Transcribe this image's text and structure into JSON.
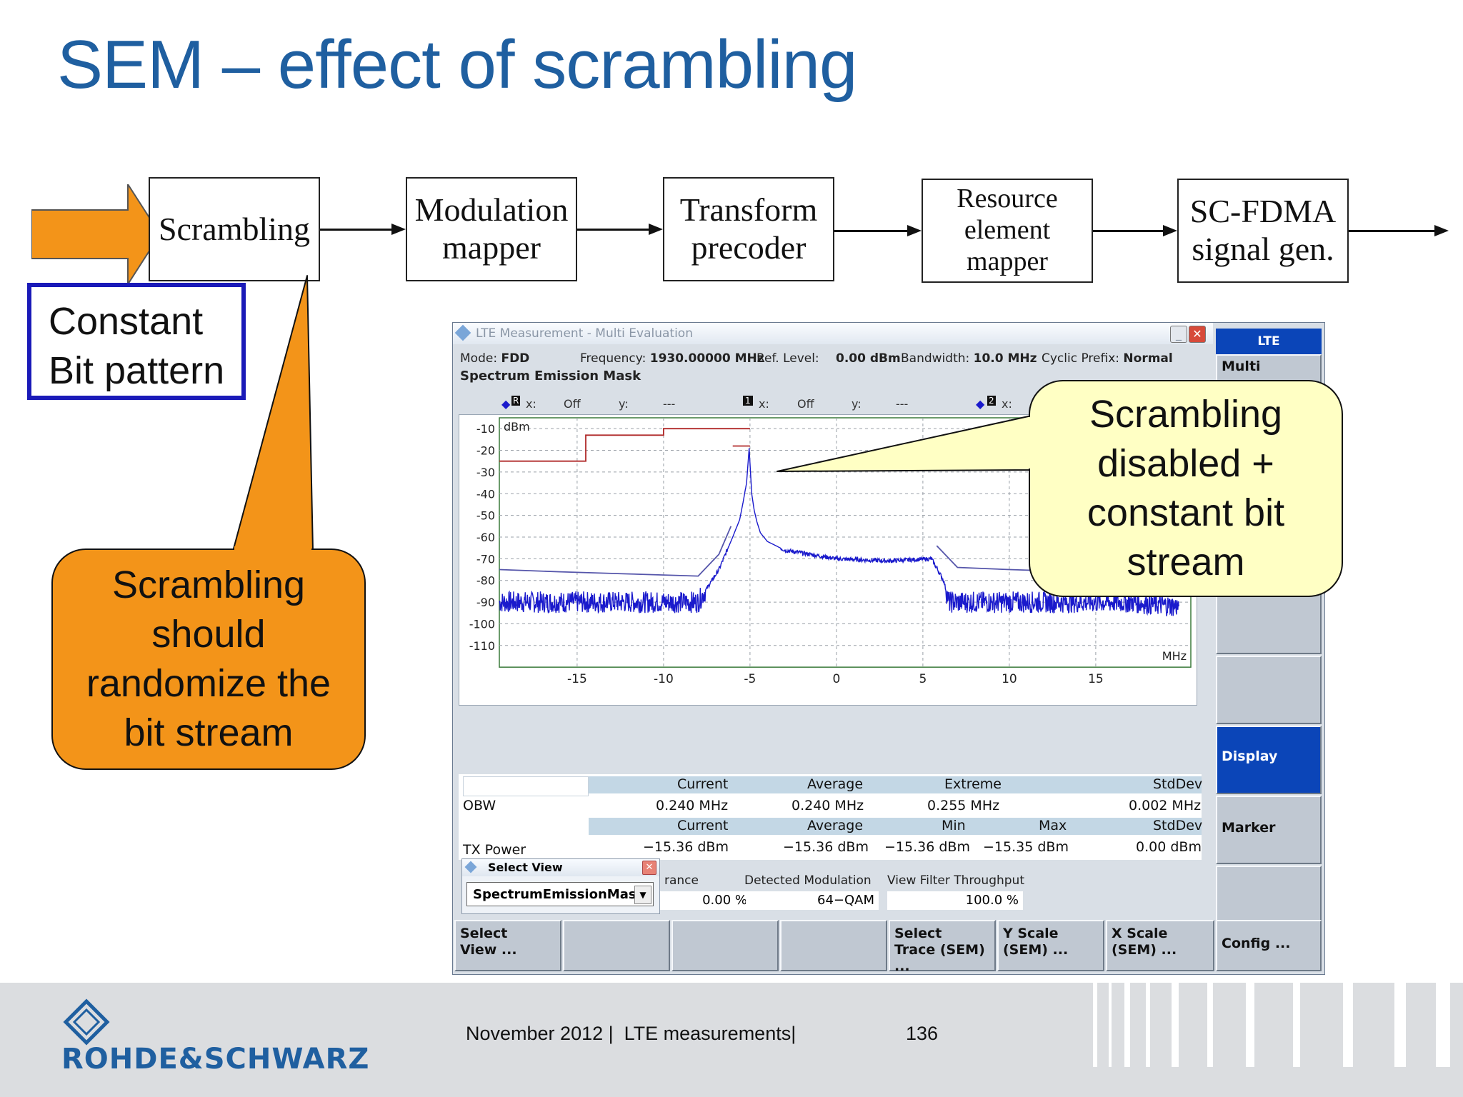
{
  "title": "SEM – effect of scrambling",
  "chain": {
    "blocks": [
      {
        "id": "scrambling",
        "lines": [
          "Scrambling"
        ]
      },
      {
        "id": "modulation-mapper",
        "lines": [
          "Modulation",
          "mapper"
        ]
      },
      {
        "id": "transform-precoder",
        "lines": [
          "Transform",
          "precoder"
        ]
      },
      {
        "id": "resource-element-mapper",
        "lines": [
          "Resource",
          "element mapper"
        ]
      },
      {
        "id": "sc-fdma",
        "lines": [
          "SC-FDMA",
          "signal gen."
        ]
      }
    ]
  },
  "constant_box": {
    "lines": [
      "Constant",
      "Bit pattern"
    ]
  },
  "callout_orange": {
    "lines": [
      "Scrambling",
      "should",
      "randomize the",
      "bit stream"
    ]
  },
  "callout_yellow": {
    "lines": [
      "Scrambling",
      "disabled +",
      "constant bit",
      "stream"
    ]
  },
  "instrument": {
    "window_title": "LTE Measurement - Multi Evaluation",
    "info": {
      "mode_label": "Mode:",
      "mode": "FDD",
      "freq_label": "Frequency:",
      "freq": "1930.00000 MHz",
      "ref_label": "Ref. Level:",
      "ref": "0.00 dBm",
      "bw_label": "Bandwidth:",
      "bw": "10.0 MHz",
      "cp_label": "Cyclic Prefix:",
      "cp": "Normal"
    },
    "view_name": "Spectrum Emission Mask",
    "markers": {
      "r_x": "x:",
      "r_xv": "Off",
      "r_y": "y:",
      "r_yv": "---",
      "m1_x": "x:",
      "m1_xv": "Off",
      "m1_y": "y:",
      "m1_yv": "---",
      "m2_x": "x:"
    },
    "unit_y": "dBm",
    "unit_x": "MHz",
    "results": {
      "obw": {
        "label": "OBW",
        "headers": [
          "Current",
          "Average",
          "Extreme",
          "StdDev"
        ],
        "values": [
          "0.240 MHz",
          "0.240 MHz",
          "0.255 MHz",
          "0.002 MHz"
        ]
      },
      "tx": {
        "label": "TX Power",
        "headers": [
          "Current",
          "Average",
          "Min",
          "Max",
          "StdDev"
        ],
        "values": [
          "−15.36 dBm",
          "−15.36 dBm",
          "−15.36 dBm",
          "−15.35 dBm",
          "0.00 dBm"
        ]
      },
      "row3": {
        "h1": "rance",
        "h2": "Detected Modulation",
        "h3": "View Filter Throughput",
        "v1": "0.00",
        "u1": "%",
        "v2": "64−QAM",
        "v3": "100.0",
        "u3": "%"
      }
    },
    "popup": {
      "title": "Select View",
      "value": "SpectrumEmissionMask"
    },
    "side_buttons": {
      "lte": "LTE",
      "multi": "Multi",
      "display": "Display",
      "marker": "Marker",
      "config": "Config ..."
    },
    "bottom_buttons": [
      {
        "l1": "Select",
        "l2": "View ..."
      },
      {
        "l1": "",
        "l2": ""
      },
      {
        "l1": "",
        "l2": ""
      },
      {
        "l1": "",
        "l2": ""
      },
      {
        "l1": "Select",
        "l2": "Trace (SEM) ..."
      },
      {
        "l1": "Y Scale",
        "l2": "(SEM) ..."
      },
      {
        "l1": "X Scale",
        "l2": "(SEM) ..."
      }
    ]
  },
  "chart_data": {
    "type": "line",
    "xlabel": "MHz",
    "ylabel": "dBm",
    "xlim": [
      -19.5,
      20.5
    ],
    "ylim": [
      -120,
      -5
    ],
    "xticks": [
      "-15",
      "-10",
      "-5",
      "0",
      "5",
      "10",
      "15"
    ],
    "xtick_values": [
      -15,
      -10,
      -5,
      0,
      5,
      10,
      15
    ],
    "yticks": [
      "-10",
      "-20",
      "-30",
      "-40",
      "-50",
      "-60",
      "-70",
      "-80",
      "-90",
      "-100",
      "-110"
    ],
    "ytick_values": [
      -10,
      -20,
      -30,
      -40,
      -50,
      -60,
      -70,
      -80,
      -90,
      -100,
      -110
    ],
    "grid": true,
    "series": [
      {
        "id": "limit",
        "color": "#b02a2a",
        "x": [
          -19.5,
          -14.5,
          -14.5,
          -10,
          -10,
          -5
        ],
        "y": [
          -25,
          -25,
          -13,
          -13,
          -10,
          -10
        ]
      },
      {
        "id": "limit-seg",
        "color": "#b02a2a",
        "x": [
          -6,
          -5
        ],
        "y": [
          -18,
          -18
        ]
      },
      {
        "id": "measured",
        "color": "#1a1acc",
        "x": [
          -19.5,
          -16,
          -12,
          -8,
          -6.8,
          -6,
          -5.6,
          -5.4,
          -5.2,
          -5.05,
          -4.9,
          -4.75,
          -4.6,
          -4.4,
          -4,
          -3,
          0,
          3,
          5.5,
          6.2,
          6.5,
          7,
          10,
          14,
          17,
          19.8
        ],
        "y": [
          -90,
          -90,
          -90,
          -90,
          -75,
          -60,
          -52,
          -44,
          -35,
          -19,
          -40,
          -48,
          -53,
          -58,
          -62,
          -66,
          -70,
          -71,
          -70,
          -80,
          -90,
          -90,
          -90,
          -90,
          -90,
          -92
        ]
      },
      {
        "id": "upper-trace",
        "color": "#5555aa",
        "x": [
          -19.5,
          -16,
          -12,
          -8,
          -6.8,
          -6.1
        ],
        "y": [
          -75,
          -76,
          -77,
          -78,
          -68,
          -55
        ]
      },
      {
        "id": "upper-trace-r",
        "color": "#5555aa",
        "x": [
          5.8,
          7,
          10,
          14,
          18,
          19.8
        ],
        "y": [
          -64,
          -74,
          -75,
          -76,
          -76,
          -75
        ]
      }
    ]
  }
}
